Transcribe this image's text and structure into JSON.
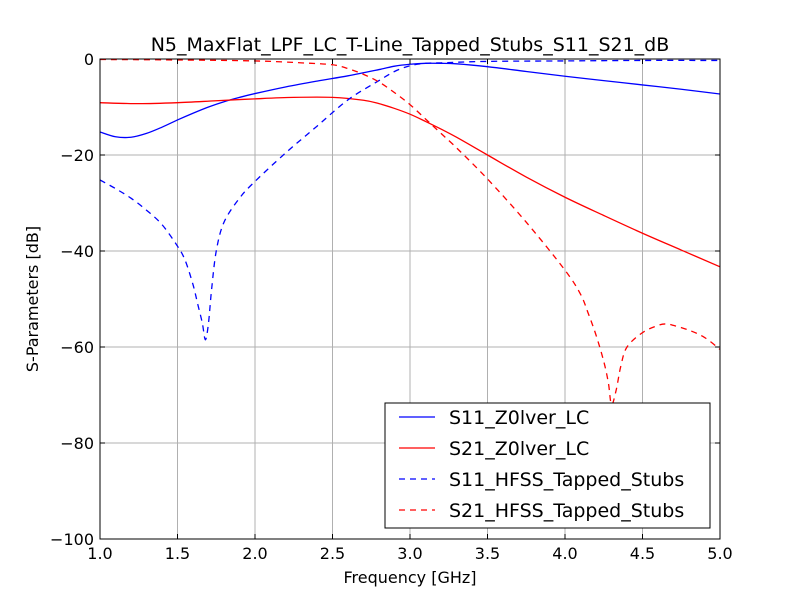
{
  "chart_data": {
    "type": "line",
    "title": "N5_MaxFlat_LPF_LC_T-Line_Tapped_Stubs_S11_S21_dB",
    "xlabel": "Frequency [GHz]",
    "ylabel": "S-Parameters [dB]",
    "xlim": [
      1.0,
      5.0
    ],
    "ylim": [
      -100,
      0
    ],
    "xticks": [
      1.0,
      1.5,
      2.0,
      2.5,
      3.0,
      3.5,
      4.0,
      4.5,
      5.0
    ],
    "xtick_labels": [
      "1.0",
      "1.5",
      "2.0",
      "2.5",
      "3.0",
      "3.5",
      "4.0",
      "4.5",
      "5.0"
    ],
    "yticks": [
      0,
      -20,
      -40,
      -60,
      -80,
      -100
    ],
    "ytick_labels": [
      "0",
      "−20",
      "−40",
      "−60",
      "−80",
      "−100"
    ],
    "grid": true,
    "legend_position": "bottom-right",
    "series": [
      {
        "name": "S11_Z0lver_LC",
        "color": "#0000ff",
        "style": "solid",
        "x": [
          1.0,
          1.1,
          1.2,
          1.3,
          1.4,
          1.5,
          1.6,
          1.7,
          1.8,
          1.9,
          2.0,
          2.2,
          2.4,
          2.6,
          2.8,
          2.9,
          3.0,
          3.1,
          3.2,
          3.3,
          3.5,
          3.75,
          4.0,
          4.25,
          4.5,
          4.75,
          5.0
        ],
        "y": [
          -15.2,
          -16.2,
          -16.3,
          -15.5,
          -14.2,
          -12.7,
          -11.3,
          -10.0,
          -8.9,
          -8.0,
          -7.2,
          -5.8,
          -4.6,
          -3.5,
          -2.2,
          -1.5,
          -1.1,
          -0.9,
          -0.9,
          -1.0,
          -1.6,
          -2.6,
          -3.6,
          -4.5,
          -5.4,
          -6.3,
          -7.3
        ]
      },
      {
        "name": "S21_Z0lver_LC",
        "color": "#ff0000",
        "style": "solid",
        "x": [
          1.0,
          1.25,
          1.5,
          1.75,
          2.0,
          2.25,
          2.5,
          2.7,
          2.8,
          2.9,
          3.0,
          3.1,
          3.2,
          3.3,
          3.5,
          3.75,
          4.0,
          4.25,
          4.5,
          4.75,
          5.0
        ],
        "y": [
          -9.1,
          -9.3,
          -9.1,
          -8.7,
          -8.3,
          -8.0,
          -8.0,
          -8.6,
          -9.3,
          -10.3,
          -11.5,
          -13.0,
          -14.6,
          -16.3,
          -20.0,
          -24.6,
          -28.8,
          -32.6,
          -36.3,
          -39.8,
          -43.3
        ]
      },
      {
        "name": "S11_HFSS_Tapped_Stubs",
        "color": "#0000ff",
        "style": "dashed",
        "x": [
          1.0,
          1.1,
          1.2,
          1.3,
          1.4,
          1.5,
          1.55,
          1.6,
          1.63,
          1.66,
          1.68,
          1.7,
          1.72,
          1.75,
          1.8,
          1.9,
          2.0,
          2.2,
          2.4,
          2.6,
          2.8,
          2.9,
          3.0,
          3.1,
          3.2,
          3.5,
          4.0,
          4.5,
          5.0
        ],
        "y": [
          -25.2,
          -27.0,
          -29.0,
          -31.5,
          -34.5,
          -39.0,
          -42.0,
          -47.0,
          -51.0,
          -55.0,
          -58.5,
          -55.0,
          -48.0,
          -40.0,
          -34.0,
          -29.0,
          -25.5,
          -19.5,
          -14.0,
          -8.5,
          -4.5,
          -2.6,
          -1.4,
          -0.9,
          -0.8,
          -0.5,
          -0.4,
          -0.3,
          -0.3
        ]
      },
      {
        "name": "S21_HFSS_Tapped_Stubs",
        "color": "#ff0000",
        "style": "dashed",
        "x": [
          1.0,
          1.5,
          2.0,
          2.3,
          2.5,
          2.6,
          2.7,
          2.8,
          2.9,
          3.0,
          3.1,
          3.2,
          3.3,
          3.5,
          3.75,
          4.0,
          4.1,
          4.15,
          4.2,
          4.25,
          4.28,
          4.3,
          4.33,
          4.36,
          4.4,
          4.5,
          4.6,
          4.65,
          4.7,
          4.8,
          4.9,
          5.0
        ],
        "y": [
          -0.1,
          -0.2,
          -0.4,
          -0.8,
          -1.2,
          -2.0,
          -3.2,
          -4.8,
          -7.0,
          -9.5,
          -12.5,
          -15.5,
          -18.5,
          -25.0,
          -34.0,
          -44.0,
          -49.0,
          -53.0,
          -57.5,
          -63.0,
          -67.5,
          -72.0,
          -69.0,
          -64.0,
          -60.0,
          -57.0,
          -55.5,
          -55.2,
          -55.5,
          -56.5,
          -58.0,
          -60.5
        ]
      }
    ]
  }
}
